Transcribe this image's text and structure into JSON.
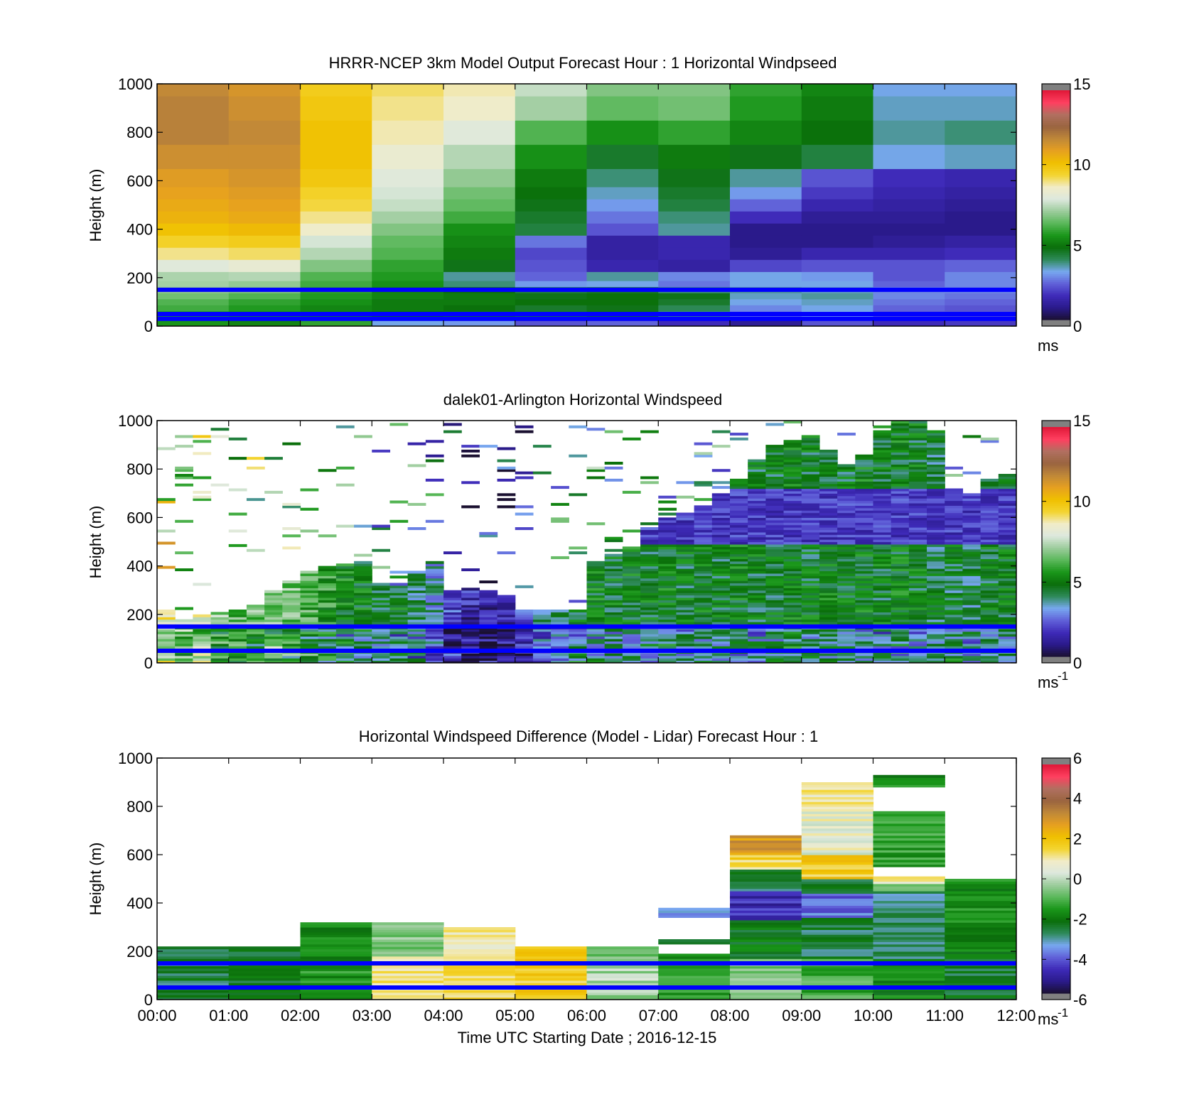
{
  "colors": {
    "windspeed_colormap": [
      "#1a1030",
      "#2a1a8a",
      "#3e2ab8",
      "#6060d8",
      "#78a8f0",
      "#2e8a5a",
      "#0a6e0a",
      "#1a961a",
      "#5ab85a",
      "#9ccc9c",
      "#dde8dd",
      "#f1ecc8",
      "#f3d430",
      "#f0c000",
      "#e6a020",
      "#c08838",
      "#9a6440",
      "#b07060",
      "#ff4060",
      "#e01838"
    ],
    "reference_line": "#0000ff",
    "missing": "#808080"
  },
  "chart_data": [
    {
      "type": "heatmap",
      "title": "HRRR-NCEP 3km Model Output   Forecast Hour : 1 Horizontal Windpseed",
      "xlabel": "",
      "ylabel": "Height (m)",
      "x_range": [
        "00:00",
        "12:00"
      ],
      "ylim": [
        0,
        1000
      ],
      "y_ticks": [
        "0",
        "200",
        "400",
        "600",
        "800",
        "1000"
      ],
      "colorbar": {
        "min": 0,
        "max": 15,
        "ticks": [
          "0",
          "5",
          "10",
          "15"
        ],
        "unit": "ms"
      },
      "reference_lines_m": [
        150,
        50,
        30
      ],
      "time_bins": [
        "00:00",
        "01:00",
        "02:00",
        "03:00",
        "04:00",
        "05:00",
        "06:00",
        "07:00",
        "08:00",
        "09:00",
        "10:00",
        "11:00"
      ],
      "height_levels_m": [
        25,
        50,
        75,
        100,
        125,
        150,
        175,
        200,
        250,
        300,
        350,
        400,
        450,
        500,
        550,
        600,
        700,
        800,
        900,
        1000
      ],
      "values": [
        [
          5.5,
          5.2,
          5.8,
          3.2,
          3.0,
          2.2,
          2.4,
          1.6,
          1.0,
          2.2,
          1.6,
          1.8
        ],
        [
          5.6,
          5.4,
          5.2,
          4.8,
          4.6,
          4.4,
          4.6,
          3.8,
          2.6,
          3.2,
          2.2,
          2.2
        ],
        [
          6.0,
          5.6,
          5.2,
          5.0,
          4.8,
          4.4,
          4.6,
          4.0,
          2.8,
          3.2,
          2.4,
          2.2
        ],
        [
          6.2,
          5.8,
          5.4,
          5.0,
          5.0,
          4.8,
          4.8,
          4.4,
          3.2,
          3.4,
          2.6,
          2.4
        ],
        [
          6.6,
          6.2,
          5.6,
          5.2,
          5.0,
          4.6,
          4.8,
          4.6,
          3.4,
          3.6,
          2.8,
          2.6
        ],
        [
          7.0,
          6.8,
          5.8,
          5.2,
          4.8,
          4.2,
          4.4,
          3.8,
          3.6,
          3.4,
          2.8,
          2.8
        ],
        [
          7.2,
          7.0,
          6.0,
          5.4,
          3.8,
          3.0,
          3.2,
          2.6,
          3.2,
          3.2,
          2.4,
          2.8
        ],
        [
          7.3,
          7.4,
          6.2,
          5.6,
          3.6,
          2.4,
          3.6,
          2.8,
          3.2,
          3.0,
          2.2,
          2.8
        ],
        [
          8.0,
          8.3,
          6.8,
          5.8,
          4.6,
          2.2,
          1.4,
          1.2,
          2.0,
          2.2,
          2.2,
          2.4
        ],
        [
          9.0,
          9.2,
          7.4,
          6.2,
          5.0,
          2.0,
          1.2,
          1.4,
          1.0,
          1.4,
          1.4,
          1.6
        ],
        [
          9.6,
          9.8,
          7.8,
          6.4,
          5.2,
          2.6,
          1.2,
          1.4,
          0.8,
          0.8,
          1.0,
          1.2
        ],
        [
          10.2,
          10.4,
          8.6,
          6.8,
          5.4,
          4.2,
          2.2,
          3.6,
          0.8,
          0.8,
          0.8,
          0.8
        ],
        [
          10.6,
          10.8,
          9.0,
          7.2,
          6.0,
          4.4,
          2.6,
          3.8,
          1.6,
          1.0,
          1.0,
          0.8
        ],
        [
          10.8,
          11.0,
          9.4,
          7.6,
          6.4,
          4.6,
          3.0,
          4.2,
          2.4,
          1.4,
          1.2,
          1.0
        ],
        [
          11.0,
          11.2,
          9.6,
          7.8,
          6.6,
          4.8,
          3.4,
          4.4,
          3.0,
          1.8,
          1.4,
          1.2
        ],
        [
          11.2,
          11.4,
          10.0,
          8.0,
          7.0,
          5.0,
          3.8,
          4.6,
          3.6,
          2.2,
          1.6,
          1.4
        ],
        [
          11.6,
          11.6,
          10.2,
          8.4,
          7.4,
          5.4,
          4.4,
          5.0,
          4.6,
          4.2,
          3.2,
          3.4
        ],
        [
          12.0,
          11.8,
          10.2,
          8.8,
          8.0,
          6.2,
          5.4,
          5.8,
          5.2,
          4.8,
          3.6,
          3.8
        ],
        [
          12.0,
          11.6,
          10.0,
          9.0,
          8.6,
          7.2,
          6.4,
          6.6,
          5.6,
          5.0,
          3.4,
          3.4
        ],
        [
          11.8,
          11.4,
          9.8,
          9.2,
          8.8,
          7.6,
          6.8,
          6.8,
          5.8,
          5.2,
          3.2,
          3.2
        ]
      ]
    },
    {
      "type": "heatmap",
      "title": "dalek01-Arlington  Horizontal Windspeed",
      "xlabel": "",
      "ylabel": "Height (m)",
      "x_range": [
        "00:00",
        "12:00"
      ],
      "ylim": [
        0,
        1000
      ],
      "y_ticks": [
        "0",
        "200",
        "400",
        "600",
        "800",
        "1000"
      ],
      "colorbar": {
        "min": 0,
        "max": 15,
        "ticks": [
          "0",
          "5",
          "10",
          "15"
        ],
        "unit": "ms",
        "unit_exponent": "-1"
      },
      "reference_lines_m": [
        150,
        50
      ],
      "time_range_h": [
        0,
        12
      ],
      "column_width_h": 0.25,
      "row_height_m": 10,
      "profiles": [
        {
          "t": 0.0,
          "top_m": 220,
          "base": 8.6
        },
        {
          "t": 0.25,
          "top_m": 180,
          "base": 7.6
        },
        {
          "t": 0.5,
          "top_m": 200,
          "base": 8.2
        },
        {
          "t": 0.75,
          "top_m": 210,
          "base": 7.0
        },
        {
          "t": 1.0,
          "top_m": 220,
          "base": 6.4
        },
        {
          "t": 1.25,
          "top_m": 240,
          "base": 6.6
        },
        {
          "t": 1.5,
          "top_m": 300,
          "base": 6.8
        },
        {
          "t": 1.75,
          "top_m": 340,
          "base": 6.6
        },
        {
          "t": 2.0,
          "top_m": 380,
          "base": 6.2
        },
        {
          "t": 2.25,
          "top_m": 400,
          "base": 5.6
        },
        {
          "t": 2.5,
          "top_m": 410,
          "base": 5.0
        },
        {
          "t": 2.75,
          "top_m": 420,
          "base": 4.8
        },
        {
          "t": 3.0,
          "top_m": 330,
          "base": 4.6
        },
        {
          "t": 3.25,
          "top_m": 320,
          "base": 4.6
        },
        {
          "t": 3.5,
          "top_m": 380,
          "base": 4.2
        },
        {
          "t": 3.75,
          "top_m": 420,
          "base": 3.4
        },
        {
          "t": 4.0,
          "top_m": 300,
          "base": 2.0
        },
        {
          "t": 4.25,
          "top_m": 310,
          "base": 1.4
        },
        {
          "t": 4.5,
          "top_m": 300,
          "base": 1.2
        },
        {
          "t": 4.75,
          "top_m": 280,
          "base": 1.4
        },
        {
          "t": 5.0,
          "top_m": 220,
          "base": 2.2
        },
        {
          "t": 5.25,
          "top_m": 220,
          "base": 3.6
        },
        {
          "t": 5.5,
          "top_m": 210,
          "base": 4.2
        },
        {
          "t": 5.75,
          "top_m": 220,
          "base": 4.6
        },
        {
          "t": 6.0,
          "top_m": 420,
          "base": 4.8
        },
        {
          "t": 6.25,
          "top_m": 450,
          "base": 4.6
        },
        {
          "t": 6.5,
          "top_m": 480,
          "base": 4.8
        },
        {
          "t": 6.75,
          "top_m": 560,
          "base": 4.6
        },
        {
          "t": 7.0,
          "top_m": 600,
          "base": 4.8
        },
        {
          "t": 7.25,
          "top_m": 620,
          "base": 4.6
        },
        {
          "t": 7.5,
          "top_m": 650,
          "base": 4.8
        },
        {
          "t": 7.75,
          "top_m": 700,
          "base": 4.6
        },
        {
          "t": 8.0,
          "top_m": 760,
          "base": 4.8
        },
        {
          "t": 8.25,
          "top_m": 840,
          "base": 4.6
        },
        {
          "t": 8.5,
          "top_m": 900,
          "base": 4.6
        },
        {
          "t": 8.75,
          "top_m": 920,
          "base": 4.8
        },
        {
          "t": 9.0,
          "top_m": 940,
          "base": 4.6
        },
        {
          "t": 9.25,
          "top_m": 880,
          "base": 4.8
        },
        {
          "t": 9.5,
          "top_m": 820,
          "base": 4.6
        },
        {
          "t": 9.75,
          "top_m": 860,
          "base": 4.8
        },
        {
          "t": 10.0,
          "top_m": 960,
          "base": 4.6
        },
        {
          "t": 10.25,
          "top_m": 1000,
          "base": 4.8
        },
        {
          "t": 10.5,
          "top_m": 1000,
          "base": 4.6
        },
        {
          "t": 10.75,
          "top_m": 960,
          "base": 4.4
        },
        {
          "t": 11.0,
          "top_m": 720,
          "base": 4.4
        },
        {
          "t": 11.25,
          "top_m": 700,
          "base": 4.2
        },
        {
          "t": 11.5,
          "top_m": 760,
          "base": 4.6
        },
        {
          "t": 11.75,
          "top_m": 780,
          "base": 4.6
        }
      ]
    },
    {
      "type": "heatmap",
      "title": "Horizontal Windspeed Difference (Model - Lidar) Forecast Hour : 1",
      "xlabel": "Time UTC  Starting Date ; 2016-12-15",
      "ylabel": "Height (m)",
      "x_ticks": [
        "00:00",
        "01:00",
        "02:00",
        "03:00",
        "04:00",
        "05:00",
        "06:00",
        "07:00",
        "08:00",
        "09:00",
        "10:00",
        "11:00",
        "12:00"
      ],
      "ylim": [
        0,
        1000
      ],
      "y_ticks": [
        "0",
        "200",
        "400",
        "600",
        "800",
        "1000"
      ],
      "colorbar": {
        "min": -6,
        "max": 6,
        "ticks": [
          "-6",
          "-4",
          "-2",
          "0",
          "2",
          "4",
          "6"
        ],
        "unit": "ms",
        "unit_exponent": "-1"
      },
      "reference_lines_m": [
        150,
        50
      ],
      "time_bins": [
        "00:00",
        "01:00",
        "02:00",
        "03:00",
        "04:00",
        "05:00",
        "06:00",
        "07:00",
        "08:00",
        "09:00",
        "10:00",
        "11:00"
      ],
      "columns": [
        {
          "bin": 0,
          "segments": [
            {
              "from_m": 0,
              "to_m": 220,
              "value": -2.6
            }
          ]
        },
        {
          "bin": 1,
          "segments": [
            {
              "from_m": 0,
              "to_m": 220,
              "value": -2.4
            }
          ]
        },
        {
          "bin": 2,
          "segments": [
            {
              "from_m": 0,
              "to_m": 150,
              "value": -1.6
            },
            {
              "from_m": 150,
              "to_m": 320,
              "value": -1.8
            }
          ]
        },
        {
          "bin": 3,
          "segments": [
            {
              "from_m": 0,
              "to_m": 180,
              "value": 1.3
            },
            {
              "from_m": 180,
              "to_m": 320,
              "value": -0.5
            }
          ]
        },
        {
          "bin": 4,
          "segments": [
            {
              "from_m": 0,
              "to_m": 200,
              "value": 1.4
            },
            {
              "from_m": 200,
              "to_m": 300,
              "value": 1.0
            }
          ]
        },
        {
          "bin": 5,
          "segments": [
            {
              "from_m": 0,
              "to_m": 220,
              "value": 1.8
            }
          ]
        },
        {
          "bin": 6,
          "segments": [
            {
              "from_m": 0,
              "to_m": 150,
              "value": -0.2
            },
            {
              "from_m": 150,
              "to_m": 220,
              "value": -0.9
            }
          ]
        },
        {
          "bin": 7,
          "segments": [
            {
              "from_m": 0,
              "to_m": 190,
              "value": -1.5
            },
            {
              "from_m": 230,
              "to_m": 250,
              "value": -2.8
            },
            {
              "from_m": 340,
              "to_m": 380,
              "value": -3.6
            }
          ]
        },
        {
          "bin": 8,
          "segments": [
            {
              "from_m": 0,
              "to_m": 170,
              "value": -0.6
            },
            {
              "from_m": 170,
              "to_m": 330,
              "value": -2.2
            },
            {
              "from_m": 330,
              "to_m": 450,
              "value": -4.8
            },
            {
              "from_m": 450,
              "to_m": 540,
              "value": -2.6
            },
            {
              "from_m": 540,
              "to_m": 600,
              "value": 1.6
            },
            {
              "from_m": 600,
              "to_m": 680,
              "value": 3.0
            }
          ]
        },
        {
          "bin": 9,
          "segments": [
            {
              "from_m": 0,
              "to_m": 170,
              "value": -1.2
            },
            {
              "from_m": 170,
              "to_m": 340,
              "value": -2.6
            },
            {
              "from_m": 340,
              "to_m": 440,
              "value": -4.0
            },
            {
              "from_m": 440,
              "to_m": 500,
              "value": -2.4
            },
            {
              "from_m": 500,
              "to_m": 600,
              "value": 1.8
            },
            {
              "from_m": 600,
              "to_m": 800,
              "value": 0.6
            },
            {
              "from_m": 800,
              "to_m": 900,
              "value": 1.2
            }
          ]
        },
        {
          "bin": 10,
          "segments": [
            {
              "from_m": 0,
              "to_m": 170,
              "value": -2.0
            },
            {
              "from_m": 170,
              "to_m": 450,
              "value": -2.8
            },
            {
              "from_m": 450,
              "to_m": 480,
              "value": -0.8
            },
            {
              "from_m": 480,
              "to_m": 510,
              "value": 1.0
            },
            {
              "from_m": 550,
              "to_m": 780,
              "value": -1.4
            },
            {
              "from_m": 880,
              "to_m": 930,
              "value": -1.8
            }
          ]
        },
        {
          "bin": 11,
          "segments": [
            {
              "from_m": 0,
              "to_m": 170,
              "value": -2.4
            },
            {
              "from_m": 170,
              "to_m": 500,
              "value": -1.8
            }
          ]
        }
      ]
    }
  ]
}
